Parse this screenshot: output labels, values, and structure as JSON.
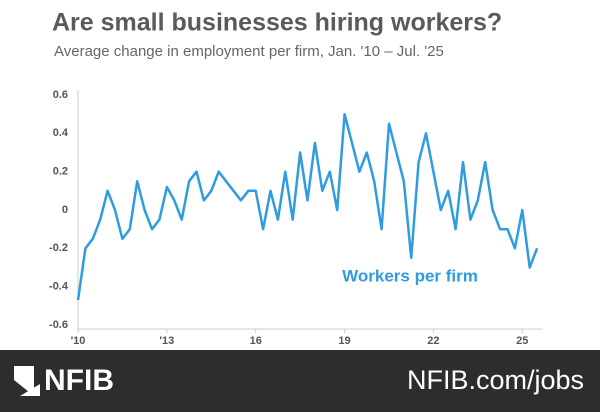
{
  "chart_data": {
    "type": "line",
    "title": "Are small businesses hiring workers?",
    "subtitle": "Average change in employment per firm, Jan. '10  – Jul. '25",
    "x": [
      2010,
      2010.25,
      2010.5,
      2010.75,
      2011,
      2011.25,
      2011.5,
      2011.75,
      2012,
      2012.25,
      2012.5,
      2012.75,
      2013,
      2013.25,
      2013.5,
      2013.75,
      2014,
      2014.25,
      2014.5,
      2014.75,
      2015,
      2015.25,
      2015.5,
      2015.75,
      2016,
      2016.25,
      2016.5,
      2016.75,
      2017,
      2017.25,
      2017.5,
      2017.75,
      2018,
      2018.25,
      2018.5,
      2018.75,
      2019,
      2019.25,
      2019.5,
      2019.75,
      2020,
      2020.25,
      2020.5,
      2020.75,
      2021,
      2021.25,
      2021.5,
      2021.75,
      2022,
      2022.25,
      2022.5,
      2022.75,
      2023,
      2023.25,
      2023.5,
      2023.75,
      2024,
      2024.25,
      2024.5,
      2024.75,
      2025,
      2025.25,
      2025.5
    ],
    "series": [
      {
        "name": "Workers per firm",
        "color": "#2f9be0",
        "values": [
          -0.47,
          -0.2,
          -0.15,
          -0.05,
          0.1,
          0.0,
          -0.15,
          -0.1,
          0.15,
          0.0,
          -0.1,
          -0.05,
          0.12,
          0.05,
          -0.05,
          0.15,
          0.2,
          0.05,
          0.1,
          0.2,
          0.15,
          0.1,
          0.05,
          0.1,
          0.1,
          -0.1,
          0.1,
          -0.05,
          0.2,
          -0.05,
          0.3,
          0.05,
          0.35,
          0.1,
          0.2,
          0.0,
          0.5,
          0.35,
          0.2,
          0.3,
          0.15,
          -0.1,
          0.45,
          0.3,
          0.15,
          -0.25,
          0.25,
          0.4,
          0.2,
          0.0,
          0.1,
          -0.1,
          0.25,
          -0.05,
          0.05,
          0.25,
          0.0,
          -0.1,
          -0.1,
          -0.2,
          0.0,
          -0.3,
          -0.2
        ]
      }
    ],
    "xlim": [
      2010,
      2025.7
    ],
    "xticks": [
      {
        "value": 2010,
        "label": "'10"
      },
      {
        "value": 2013,
        "label": "'13"
      },
      {
        "value": 2016,
        "label": "16"
      },
      {
        "value": 2019,
        "label": "19"
      },
      {
        "value": 2022,
        "label": "22"
      },
      {
        "value": 2025,
        "label": "25"
      }
    ],
    "ylim": [
      -0.6,
      0.6
    ],
    "yticks": [
      0.6,
      0.4,
      0.2,
      0,
      -0.2,
      -0.4,
      -0.6
    ],
    "grid": false
  },
  "footer": {
    "brand": "NFIB",
    "url": "NFIB.com/jobs"
  }
}
